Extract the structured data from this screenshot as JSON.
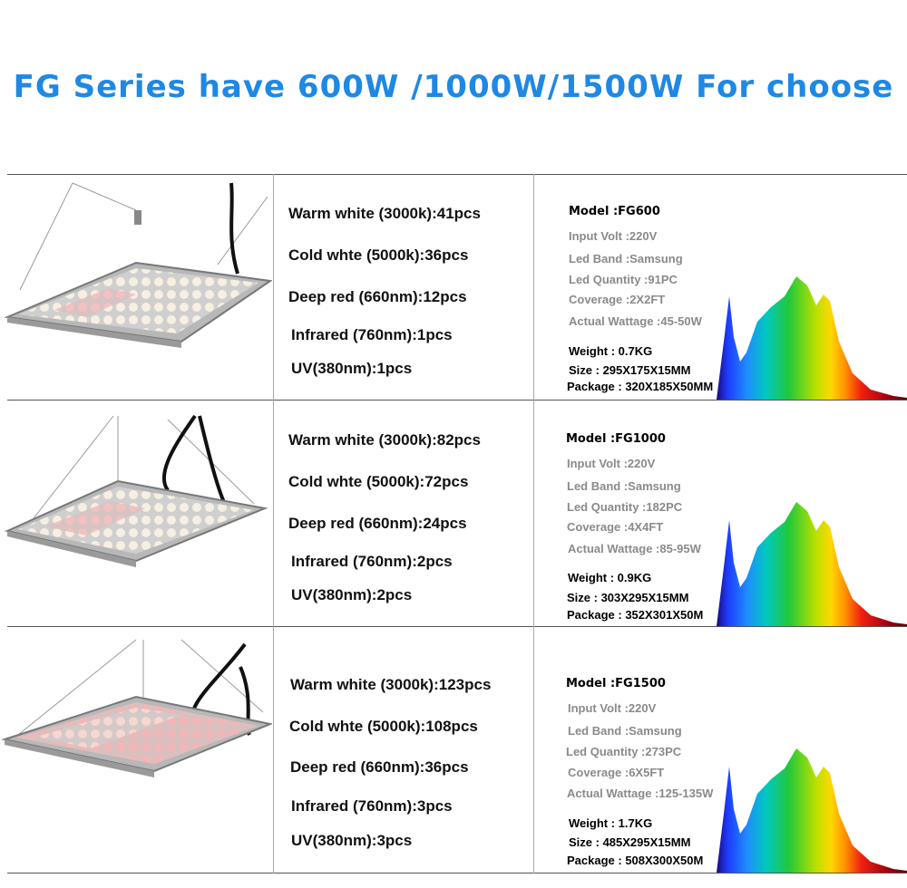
{
  "title": "FG Series have 600W /1000W/1500W For choose",
  "products": [
    {
      "leds": [
        "Warm white (3000k):41pcs",
        "Cold whte (5000k):36pcs",
        "Deep red (660nm):12pcs",
        "Infrared (760nm):1pcs",
        "UV(380nm):1pcs"
      ],
      "model": "Model :FG600",
      "input_volt": "Input Volt :220V",
      "led_band": "Led Band :Samsung",
      "led_quantity": "Led Quantity :91PC",
      "coverage": "Coverage :2X2FT",
      "actual_wattage": "Actual Wattage :45-50W",
      "weight": "Weight : 0.7KG",
      "size": "Size : 295X175X15MM",
      "package": "Package : 320X185X50MM"
    },
    {
      "leds": [
        "Warm white (3000k):82pcs",
        "Cold whte (5000k):72pcs",
        "Deep red (660nm):24pcs",
        "Infrared (760nm):2pcs",
        "UV(380nm):2pcs"
      ],
      "model": "Model :FG1000",
      "input_volt": "Input Volt :220V",
      "led_band": "Led Band :Samsung",
      "led_quantity": "Led Quantity :182PC",
      "coverage": "Coverage :4X4FT",
      "actual_wattage": "Actual Wattage :85-95W",
      "weight": "Weight : 0.9KG",
      "size": "Size : 303X295X15MM",
      "package": "Package : 352X301X50M"
    },
    {
      "leds": [
        "Warm white (3000k):123pcs",
        "Cold whte (5000k):108pcs",
        "Deep red (660nm):36pcs",
        "Infrared (760nm):3pcs",
        "UV(380nm):3pcs"
      ],
      "model": "Model :FG1500",
      "input_volt": "Input Volt :220V",
      "led_band": "Led Band :Samsung",
      "led_quantity": "Led Quantity :273PC",
      "coverage": "Coverage :6X5FT",
      "actual_wattage": "Actual Wattage :125-135W",
      "weight": "Weight : 1.7KG",
      "size": "Size : 485X295X15MM",
      "package": "Package : 508X300X50M"
    }
  ],
  "colors": {
    "title": "#1e88e5",
    "spec_gray": "#8a8a8a"
  }
}
